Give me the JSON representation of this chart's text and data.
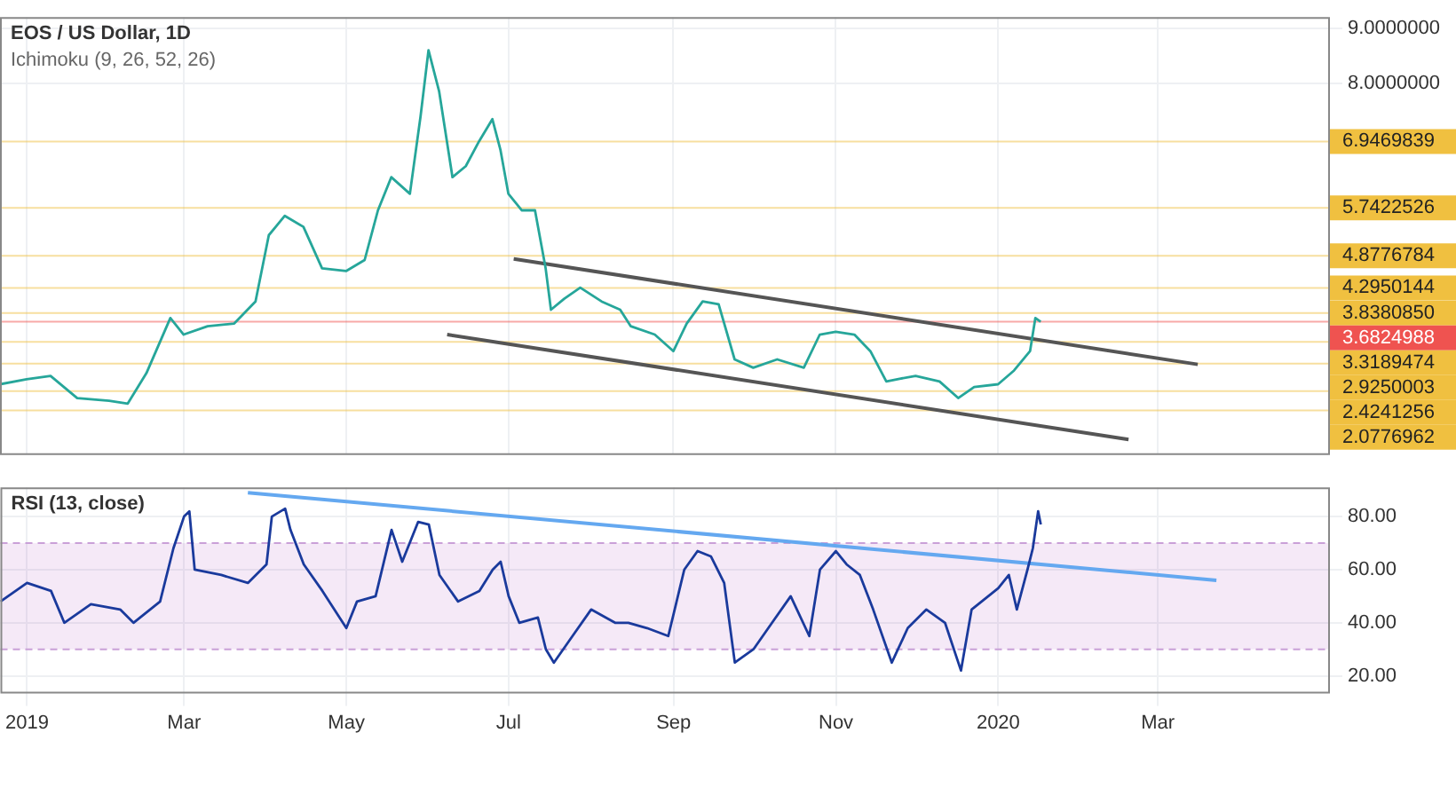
{
  "chart_data": [
    {
      "type": "line",
      "title": "EOS / US Dollar, 1D",
      "subtitle": "Ichimoku (9, 26, 52, 26)",
      "tick_labels": "y",
      "grid": true,
      "x": [
        "2018-12-22",
        "2019-01-01",
        "2019-01-10",
        "2019-01-20",
        "2019-02-01",
        "2019-02-08",
        "2019-02-15",
        "2019-02-24",
        "2019-03-01",
        "2019-03-10",
        "2019-03-20",
        "2019-03-28",
        "2019-04-02",
        "2019-04-08",
        "2019-04-15",
        "2019-04-22",
        "2019-05-01",
        "2019-05-08",
        "2019-05-13",
        "2019-05-18",
        "2019-05-25",
        "2019-05-29",
        "2019-06-01",
        "2019-06-05",
        "2019-06-10",
        "2019-06-15",
        "2019-06-20",
        "2019-06-25",
        "2019-06-28",
        "2019-07-01",
        "2019-07-06",
        "2019-07-11",
        "2019-07-15",
        "2019-07-17",
        "2019-07-22",
        "2019-07-28",
        "2019-08-05",
        "2019-08-12",
        "2019-08-16",
        "2019-08-25",
        "2019-09-01",
        "2019-09-06",
        "2019-09-12",
        "2019-09-18",
        "2019-09-24",
        "2019-10-01",
        "2019-10-10",
        "2019-10-20",
        "2019-10-26",
        "2019-11-01",
        "2019-11-08",
        "2019-11-14",
        "2019-11-20",
        "2019-11-25",
        "2019-12-01",
        "2019-12-10",
        "2019-12-17",
        "2019-12-23",
        "2020-01-01",
        "2020-01-07",
        "2020-01-13",
        "2020-01-15",
        "2020-01-17"
      ],
      "series": [
        {
          "color": "#26a69a",
          "values": [
            2.55,
            2.64,
            2.7,
            2.3,
            2.25,
            2.2,
            2.75,
            3.75,
            3.45,
            3.6,
            3.65,
            4.05,
            5.25,
            5.6,
            5.4,
            4.65,
            4.6,
            4.8,
            5.7,
            6.3,
            6.0,
            7.4,
            8.6,
            7.85,
            6.3,
            6.5,
            6.95,
            7.35,
            6.8,
            6.0,
            5.7,
            5.7,
            4.65,
            3.9,
            4.1,
            4.3,
            4.05,
            3.9,
            3.6,
            3.45,
            3.15,
            3.65,
            4.05,
            4.0,
            3.0,
            2.85,
            3.0,
            2.85,
            3.45,
            3.5,
            3.45,
            3.15,
            2.6,
            2.65,
            2.7,
            2.6,
            2.3,
            2.5,
            2.55,
            2.8,
            3.15,
            3.75,
            3.68
          ]
        },
        {
          "type": "line",
          "color": "#555555",
          "x": [
            "2019-07-03",
            "2020-03-16"
          ],
          "values": [
            4.82,
            2.91
          ]
        },
        {
          "type": "line",
          "color": "#555555",
          "x": [
            "2019-06-08",
            "2020-02-19"
          ],
          "values": [
            3.45,
            1.55
          ]
        }
      ],
      "xlim": [
        "2018-12-22",
        "2020-05-04"
      ],
      "xticks": [
        {
          "value": "2019-01-01",
          "label": null
        },
        {
          "value": "2019-03-01",
          "label": null
        },
        {
          "value": "2019-05-01",
          "label": null
        },
        {
          "value": "2019-07-01",
          "label": null
        },
        {
          "value": "2019-09-01",
          "label": null
        },
        {
          "value": "2019-11-01",
          "label": null
        },
        {
          "value": "2020-01-01",
          "label": null
        },
        {
          "value": "2020-03-01",
          "label": null
        }
      ],
      "ylim": [
        1.3,
        9.2
      ],
      "yticks": [
        {
          "value": 9,
          "label": "9.0000000"
        },
        {
          "value": 8,
          "label": "8.0000000"
        }
      ],
      "ref_lines": [
        {
          "axis": "y",
          "value": 6.9469839,
          "label": "6.9469839",
          "color": "#f0c040"
        },
        {
          "axis": "y",
          "value": 5.7422526,
          "label": "5.7422526",
          "color": "#f0c040"
        },
        {
          "axis": "y",
          "value": 4.8776784,
          "label": "4.8776784",
          "color": "#f0c040"
        },
        {
          "axis": "y",
          "value": 4.2950144,
          "label": "4.2950144",
          "color": "#f0c040"
        },
        {
          "axis": "y",
          "value": 3.838085,
          "label": "3.8380850",
          "color": "#f0c040"
        },
        {
          "axis": "y",
          "value": 3.6824988,
          "label": "3.6824988",
          "color": "#ef5350"
        },
        {
          "axis": "y",
          "value": 3.3189474,
          "label": "3.3189474",
          "color": "#f0c040"
        },
        {
          "axis": "y",
          "value": 2.9250003,
          "label": "2.9250003",
          "color": "#f0c040"
        },
        {
          "axis": "y",
          "value": 2.4241256,
          "label": "2.4241256",
          "color": "#f0c040"
        },
        {
          "axis": "y",
          "value": 2.0776962,
          "label": "2.0776962",
          "color": "#f0c040"
        }
      ]
    },
    {
      "type": "line",
      "title": "RSI (13, close)",
      "grid": true,
      "x": [
        "2018-12-22",
        "2019-01-01",
        "2019-01-10",
        "2019-01-15",
        "2019-01-25",
        "2019-02-05",
        "2019-02-10",
        "2019-02-20",
        "2019-02-25",
        "2019-03-01",
        "2019-03-03",
        "2019-03-05",
        "2019-03-15",
        "2019-03-25",
        "2019-04-01",
        "2019-04-03",
        "2019-04-08",
        "2019-04-10",
        "2019-04-15",
        "2019-04-22",
        "2019-05-01",
        "2019-05-05",
        "2019-05-12",
        "2019-05-18",
        "2019-05-22",
        "2019-05-28",
        "2019-06-01",
        "2019-06-05",
        "2019-06-12",
        "2019-06-20",
        "2019-06-25",
        "2019-06-28",
        "2019-07-01",
        "2019-07-05",
        "2019-07-12",
        "2019-07-15",
        "2019-07-18",
        "2019-07-25",
        "2019-08-01",
        "2019-08-10",
        "2019-08-15",
        "2019-08-22",
        "2019-08-30",
        "2019-09-05",
        "2019-09-10",
        "2019-09-15",
        "2019-09-20",
        "2019-09-24",
        "2019-10-01",
        "2019-10-08",
        "2019-10-15",
        "2019-10-22",
        "2019-10-26",
        "2019-11-01",
        "2019-11-05",
        "2019-11-10",
        "2019-11-15",
        "2019-11-22",
        "2019-11-28",
        "2019-12-05",
        "2019-12-12",
        "2019-12-18",
        "2019-12-22",
        "2020-01-01",
        "2020-01-05",
        "2020-01-08",
        "2020-01-12",
        "2020-01-14",
        "2020-01-16",
        "2020-01-17"
      ],
      "series": [
        {
          "color": "#1a3a9c",
          "values": [
            48,
            55,
            52,
            40,
            47,
            45,
            40,
            48,
            68,
            80,
            82,
            60,
            58,
            55,
            62,
            80,
            83,
            75,
            62,
            52,
            38,
            48,
            50,
            75,
            63,
            78,
            77,
            58,
            48,
            52,
            60,
            63,
            50,
            40,
            42,
            30,
            25,
            35,
            45,
            40,
            40,
            38,
            35,
            60,
            67,
            65,
            55,
            25,
            30,
            40,
            50,
            35,
            60,
            67,
            62,
            58,
            45,
            25,
            38,
            45,
            40,
            22,
            45,
            53,
            58,
            45,
            60,
            68,
            82,
            77
          ]
        },
        {
          "type": "line",
          "color": "#64a8f0",
          "x": [
            "2019-03-25",
            "2020-03-23"
          ],
          "values": [
            89,
            56
          ]
        }
      ],
      "xlim": [
        "2018-12-22",
        "2020-05-04"
      ],
      "xticks": [
        {
          "value": "2019-01-01",
          "label": "2019"
        },
        {
          "value": "2019-03-01",
          "label": "Mar"
        },
        {
          "value": "2019-05-01",
          "label": "May"
        },
        {
          "value": "2019-07-01",
          "label": "Jul"
        },
        {
          "value": "2019-09-01",
          "label": "Sep"
        },
        {
          "value": "2019-11-01",
          "label": "Nov"
        },
        {
          "value": "2020-01-01",
          "label": "2020"
        },
        {
          "value": "2020-03-01",
          "label": "Mar"
        }
      ],
      "ylim": [
        14,
        91
      ],
      "yticks": [
        {
          "value": 20,
          "label": "20.00"
        },
        {
          "value": 40,
          "label": "40.00"
        },
        {
          "value": 60,
          "label": "60.00"
        },
        {
          "value": 80,
          "label": "80.00"
        }
      ],
      "bands": [
        {
          "axis": "y",
          "from": 30,
          "to": 70,
          "color": "#9c27b0"
        }
      ],
      "ref_lines": [
        {
          "axis": "y",
          "value": 70,
          "color": "#c9a0d8",
          "line_style": "dashed"
        },
        {
          "axis": "y",
          "value": 30,
          "color": "#c9a0d8",
          "line_style": "dashed"
        }
      ]
    }
  ]
}
